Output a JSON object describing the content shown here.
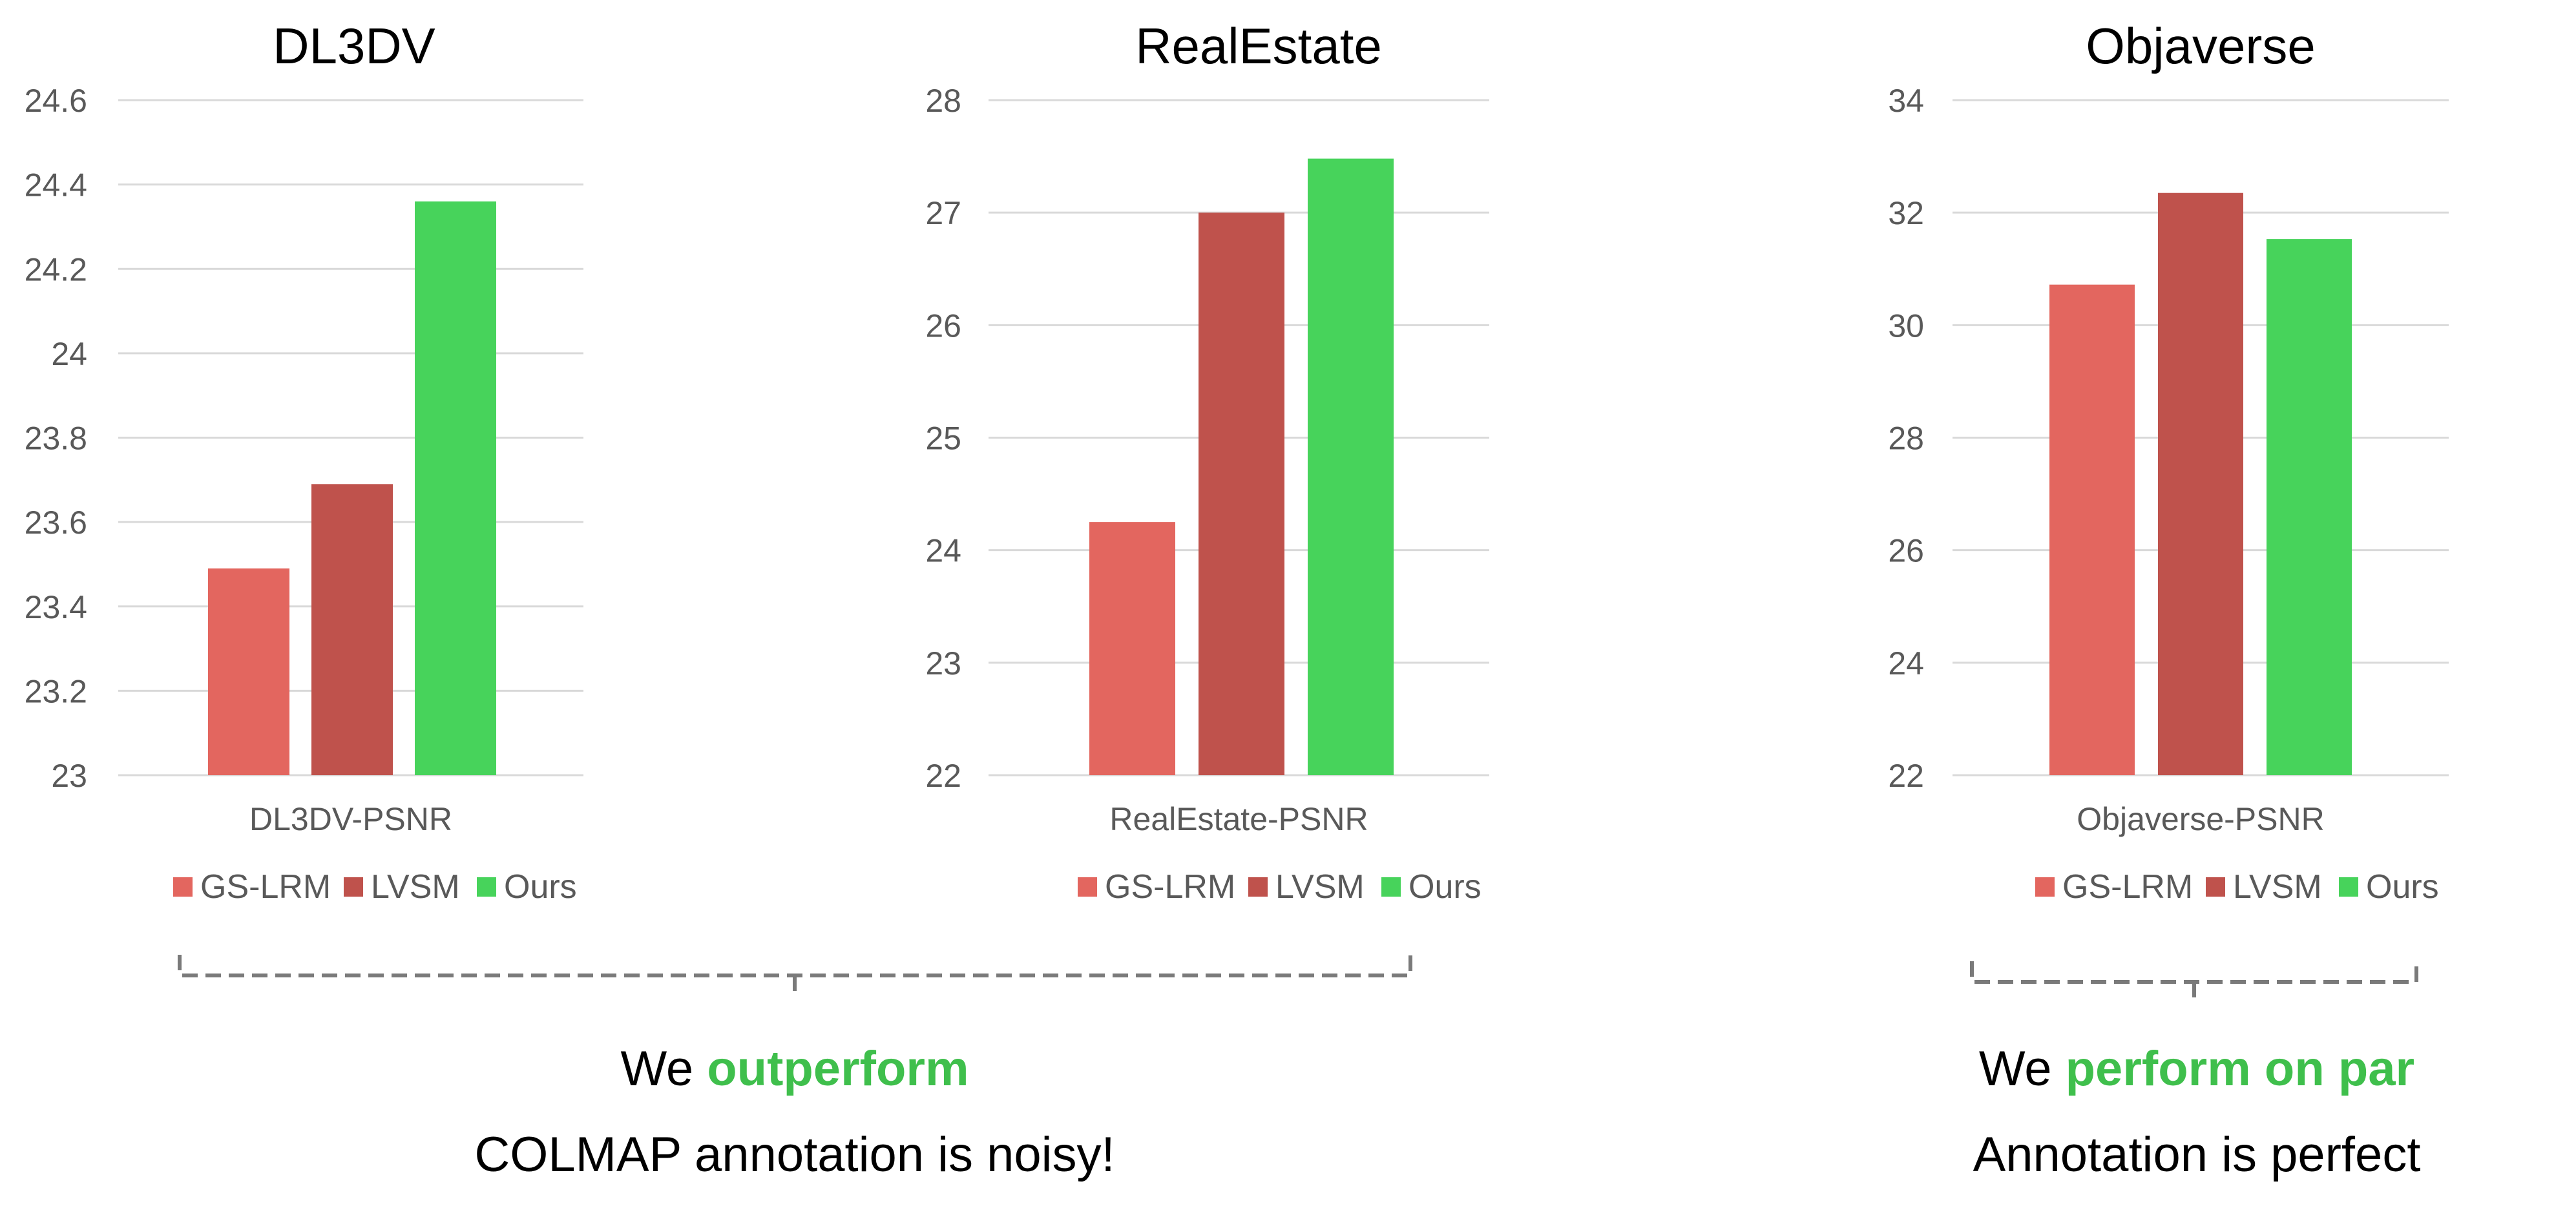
{
  "colors": {
    "gs_lrm": "#e3665f",
    "lvsm": "#bf524c",
    "ours": "#47d35b",
    "grid": "#d9d9d9",
    "axis_text": "#595959",
    "bracket": "#7a7a7a",
    "accent_text": "#3fbf4c"
  },
  "chart_data": [
    {
      "type": "bar",
      "title": "DL3DV",
      "categories": [
        "DL3DV-PSNR"
      ],
      "series": [
        {
          "name": "GS-LRM",
          "values": [
            23.49
          ]
        },
        {
          "name": "LVSM",
          "values": [
            23.69
          ]
        },
        {
          "name": "Ours",
          "values": [
            24.36
          ]
        }
      ],
      "ylim": [
        23,
        24.6
      ],
      "yticks": [
        23,
        23.2,
        23.4,
        23.6,
        23.8,
        24,
        24.2,
        24.4,
        24.6
      ],
      "ytick_labels": [
        "23",
        "23.2",
        "23.4",
        "23.6",
        "23.8",
        "24",
        "24.2",
        "24.4",
        "24.6"
      ],
      "grid": true,
      "legend": "bottom"
    },
    {
      "type": "bar",
      "title": "RealEstate",
      "categories": [
        "RealEstate-PSNR"
      ],
      "series": [
        {
          "name": "GS-LRM",
          "values": [
            24.25
          ]
        },
        {
          "name": "LVSM",
          "values": [
            27.0
          ]
        },
        {
          "name": "Ours",
          "values": [
            27.48
          ]
        }
      ],
      "ylim": [
        22,
        28
      ],
      "yticks": [
        22,
        23,
        24,
        25,
        26,
        27,
        28
      ],
      "ytick_labels": [
        "22",
        "23",
        "24",
        "25",
        "26",
        "27",
        "28"
      ],
      "grid": true,
      "legend": "bottom"
    },
    {
      "type": "bar",
      "title": "Objaverse",
      "categories": [
        "Objaverse-PSNR"
      ],
      "series": [
        {
          "name": "GS-LRM",
          "values": [
            30.72
          ]
        },
        {
          "name": "LVSM",
          "values": [
            32.35
          ]
        },
        {
          "name": "Ours",
          "values": [
            31.53
          ]
        }
      ],
      "ylim": [
        22,
        34
      ],
      "yticks": [
        22,
        24,
        26,
        28,
        30,
        32,
        34
      ],
      "ytick_labels": [
        "22",
        "24",
        "26",
        "28",
        "30",
        "32",
        "34"
      ],
      "grid": true,
      "legend": "bottom"
    }
  ],
  "annotations": {
    "left": {
      "line1_prefix": "We ",
      "line1_accent": "outperform",
      "line2": "COLMAP annotation is noisy!"
    },
    "right": {
      "line1_prefix": "We ",
      "line1_accent": "perform on par",
      "line2": "Annotation is perfect"
    }
  }
}
